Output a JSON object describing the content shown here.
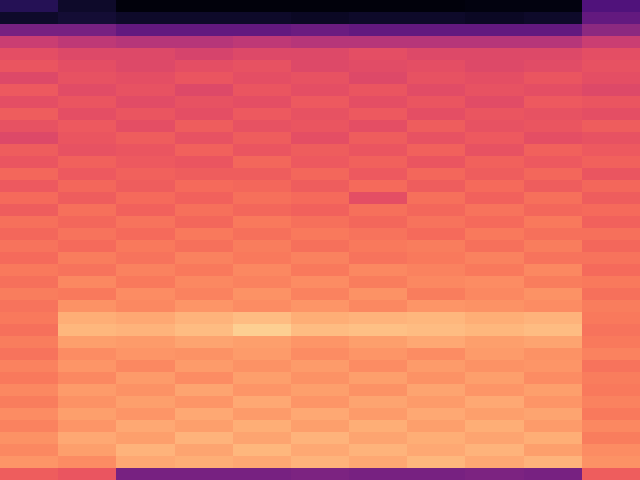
{
  "chart_data": {
    "type": "heatmap",
    "color": "magma",
    "tick_labels": false,
    "color_range": [
      0,
      1
    ],
    "cells": [
      [
        0.15,
        0.08,
        0.02,
        0.02,
        0.02,
        0.02,
        0.02,
        0.02,
        0.03,
        0.03,
        0.25
      ],
      [
        0.08,
        0.1,
        0.08,
        0.08,
        0.08,
        0.07,
        0.08,
        0.08,
        0.07,
        0.08,
        0.3
      ],
      [
        0.35,
        0.35,
        0.3,
        0.3,
        0.3,
        0.32,
        0.3,
        0.3,
        0.3,
        0.3,
        0.4
      ],
      [
        0.55,
        0.52,
        0.5,
        0.5,
        0.52,
        0.5,
        0.5,
        0.5,
        0.5,
        0.5,
        0.55
      ],
      [
        0.62,
        0.6,
        0.6,
        0.58,
        0.6,
        0.6,
        0.62,
        0.6,
        0.6,
        0.6,
        0.62
      ],
      [
        0.64,
        0.62,
        0.6,
        0.62,
        0.63,
        0.6,
        0.61,
        0.62,
        0.6,
        0.61,
        0.63
      ],
      [
        0.6,
        0.63,
        0.62,
        0.64,
        0.62,
        0.63,
        0.6,
        0.63,
        0.62,
        0.64,
        0.62
      ],
      [
        0.65,
        0.61,
        0.63,
        0.6,
        0.64,
        0.62,
        0.64,
        0.61,
        0.63,
        0.62,
        0.6
      ],
      [
        0.62,
        0.64,
        0.61,
        0.63,
        0.62,
        0.65,
        0.62,
        0.64,
        0.61,
        0.65,
        0.64
      ],
      [
        0.66,
        0.62,
        0.64,
        0.62,
        0.65,
        0.63,
        0.65,
        0.62,
        0.64,
        0.63,
        0.62
      ],
      [
        0.63,
        0.65,
        0.62,
        0.66,
        0.63,
        0.64,
        0.62,
        0.66,
        0.63,
        0.64,
        0.66
      ],
      [
        0.6,
        0.64,
        0.66,
        0.63,
        0.66,
        0.62,
        0.66,
        0.63,
        0.65,
        0.62,
        0.63
      ],
      [
        0.66,
        0.63,
        0.64,
        0.67,
        0.64,
        0.66,
        0.64,
        0.67,
        0.63,
        0.67,
        0.65
      ],
      [
        0.64,
        0.67,
        0.65,
        0.64,
        0.68,
        0.65,
        0.67,
        0.64,
        0.67,
        0.65,
        0.67
      ],
      [
        0.68,
        0.65,
        0.67,
        0.66,
        0.66,
        0.68,
        0.65,
        0.68,
        0.66,
        0.68,
        0.64
      ],
      [
        0.65,
        0.68,
        0.66,
        0.69,
        0.68,
        0.66,
        0.69,
        0.66,
        0.69,
        0.66,
        0.68
      ],
      [
        0.69,
        0.66,
        0.69,
        0.67,
        0.7,
        0.69,
        0.62,
        0.7,
        0.67,
        0.7,
        0.66
      ],
      [
        0.66,
        0.7,
        0.67,
        0.7,
        0.68,
        0.67,
        0.7,
        0.68,
        0.71,
        0.68,
        0.69
      ],
      [
        0.7,
        0.68,
        0.71,
        0.68,
        0.72,
        0.7,
        0.68,
        0.71,
        0.69,
        0.72,
        0.67
      ],
      [
        0.68,
        0.71,
        0.69,
        0.72,
        0.7,
        0.72,
        0.71,
        0.69,
        0.72,
        0.7,
        0.7
      ],
      [
        0.71,
        0.69,
        0.72,
        0.7,
        0.73,
        0.7,
        0.72,
        0.73,
        0.7,
        0.73,
        0.68
      ],
      [
        0.69,
        0.73,
        0.71,
        0.74,
        0.72,
        0.74,
        0.71,
        0.72,
        0.74,
        0.71,
        0.71
      ],
      [
        0.72,
        0.71,
        0.74,
        0.72,
        0.75,
        0.72,
        0.75,
        0.74,
        0.72,
        0.75,
        0.69
      ],
      [
        0.7,
        0.75,
        0.72,
        0.75,
        0.74,
        0.76,
        0.73,
        0.75,
        0.76,
        0.73,
        0.72
      ],
      [
        0.73,
        0.72,
        0.76,
        0.74,
        0.77,
        0.74,
        0.77,
        0.73,
        0.75,
        0.77,
        0.7
      ],
      [
        0.71,
        0.77,
        0.75,
        0.78,
        0.76,
        0.78,
        0.75,
        0.78,
        0.77,
        0.76,
        0.73
      ],
      [
        0.72,
        0.83,
        0.82,
        0.84,
        0.86,
        0.83,
        0.84,
        0.85,
        0.83,
        0.84,
        0.72
      ],
      [
        0.7,
        0.85,
        0.84,
        0.86,
        0.9,
        0.86,
        0.87,
        0.86,
        0.85,
        0.86,
        0.71
      ],
      [
        0.73,
        0.8,
        0.79,
        0.81,
        0.8,
        0.78,
        0.8,
        0.82,
        0.8,
        0.81,
        0.72
      ],
      [
        0.71,
        0.76,
        0.78,
        0.77,
        0.79,
        0.76,
        0.78,
        0.76,
        0.79,
        0.77,
        0.74
      ],
      [
        0.74,
        0.78,
        0.75,
        0.79,
        0.77,
        0.79,
        0.76,
        0.79,
        0.77,
        0.78,
        0.71
      ],
      [
        0.72,
        0.75,
        0.79,
        0.76,
        0.8,
        0.77,
        0.8,
        0.77,
        0.8,
        0.76,
        0.73
      ],
      [
        0.75,
        0.79,
        0.77,
        0.81,
        0.78,
        0.8,
        0.77,
        0.81,
        0.78,
        0.8,
        0.72
      ],
      [
        0.73,
        0.77,
        0.8,
        0.78,
        0.82,
        0.78,
        0.81,
        0.79,
        0.82,
        0.78,
        0.74
      ],
      [
        0.76,
        0.8,
        0.78,
        0.82,
        0.79,
        0.82,
        0.79,
        0.82,
        0.8,
        0.81,
        0.72
      ],
      [
        0.74,
        0.78,
        0.82,
        0.8,
        0.83,
        0.8,
        0.83,
        0.8,
        0.83,
        0.79,
        0.75
      ],
      [
        0.77,
        0.82,
        0.8,
        0.84,
        0.81,
        0.84,
        0.81,
        0.83,
        0.81,
        0.83,
        0.73
      ],
      [
        0.75,
        0.8,
        0.84,
        0.81,
        0.85,
        0.82,
        0.84,
        0.82,
        0.84,
        0.8,
        0.76
      ],
      [
        0.78,
        0.76,
        0.82,
        0.83,
        0.82,
        0.84,
        0.82,
        0.85,
        0.82,
        0.84,
        0.77
      ],
      [
        0.66,
        0.64,
        0.35,
        0.35,
        0.35,
        0.36,
        0.35,
        0.35,
        0.36,
        0.35,
        0.66
      ]
    ]
  }
}
